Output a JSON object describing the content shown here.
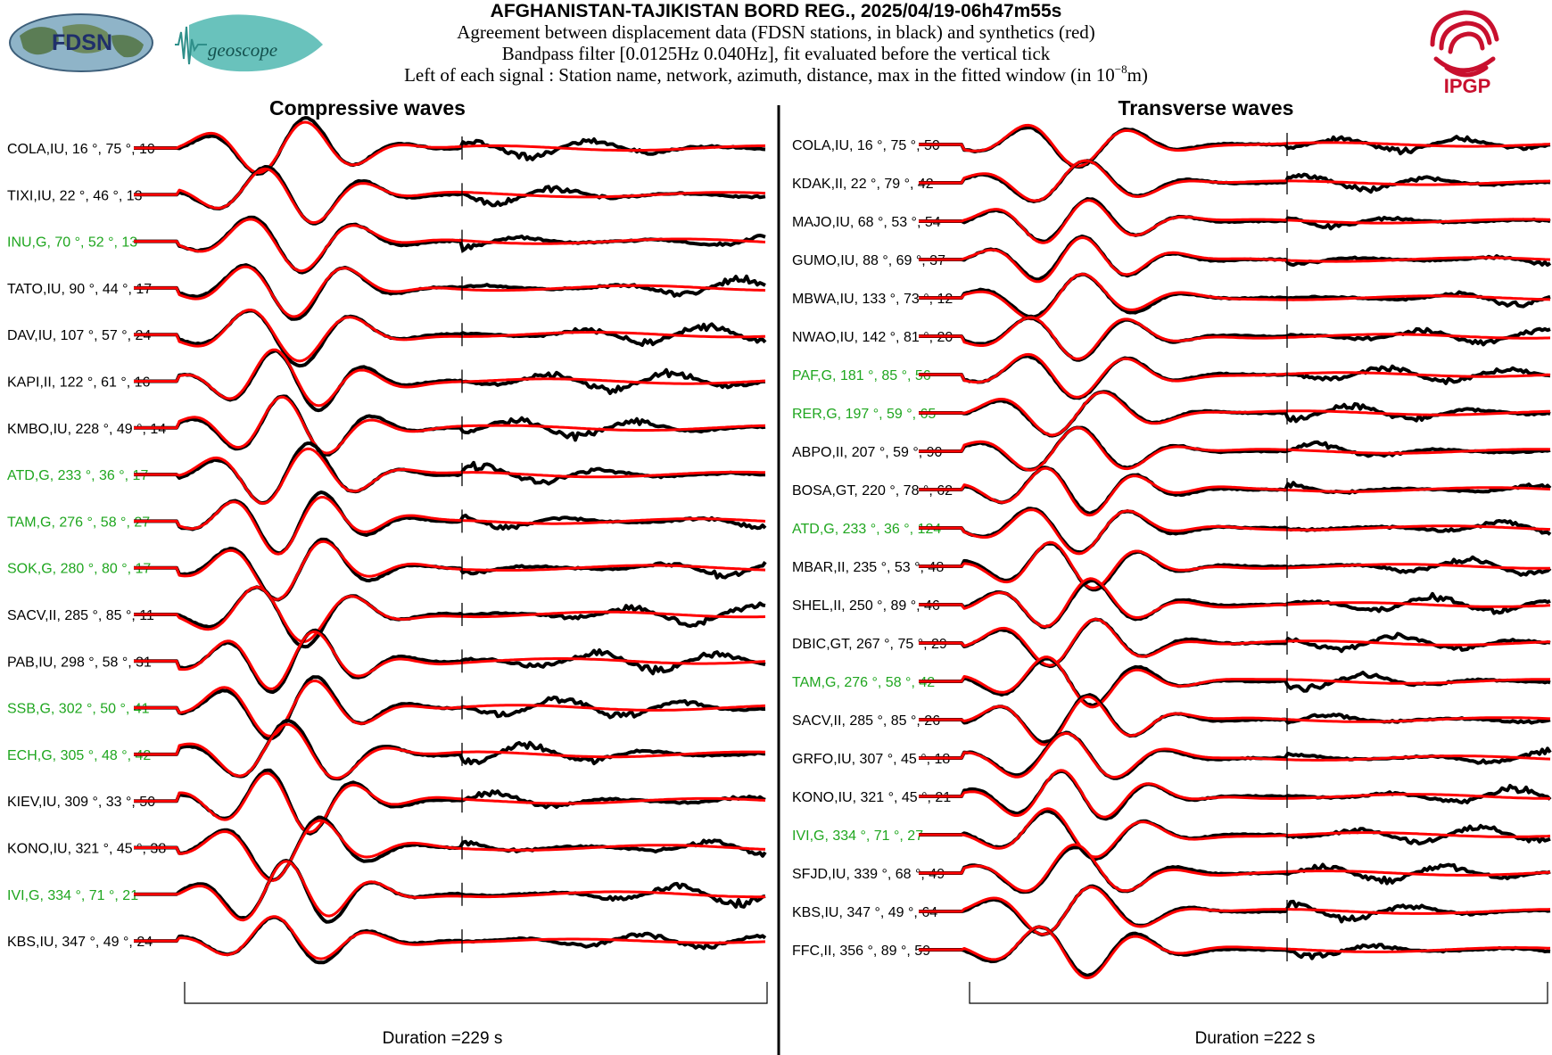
{
  "header": {
    "title": "AFGHANISTAN-TAJIKISTAN BORD REG., 2025/04/19-06h47m55s",
    "line1": "Agreement between displacement data (FDSN stations, in black) and synthetics (red)",
    "line2": "Bandpass filter [0.0125Hz 0.040Hz], fit evaluated before the vertical tick",
    "line3_pre": "Left of each signal : Station name, network, azimuth, distance, max in the fitted window (in 10",
    "line3_exp": "−8",
    "line3_post": "m)"
  },
  "logos": {
    "fdsn": "FDSN",
    "geoscope": "geoscope",
    "ipgp": "IPGP"
  },
  "colors": {
    "data": "#000000",
    "synthetic": "#ff0000",
    "geoscope_label": "#1fa61f",
    "normal_label": "#000000",
    "ipgp": "#c8102e",
    "logo_teal": "#4fb7b0"
  },
  "chart_data": [
    {
      "type": "line",
      "title": "Compressive waves",
      "duration_label": "Duration =229 s",
      "duration_s": 229,
      "series": [
        {
          "name": "data",
          "color": "#000000"
        },
        {
          "name": "synthetics",
          "color": "#ff0000"
        }
      ],
      "stations": [
        {
          "label": "COLA,IU, 16 °, 75 °, 10",
          "network": "IU",
          "azimuth": 16,
          "distance": 75,
          "max": 10,
          "geoscope": false
        },
        {
          "label": "TIXI,IU, 22 °, 46 °, 13",
          "network": "IU",
          "azimuth": 22,
          "distance": 46,
          "max": 13,
          "geoscope": false
        },
        {
          "label": "INU,G, 70 °, 52 °, 13",
          "network": "G",
          "azimuth": 70,
          "distance": 52,
          "max": 13,
          "geoscope": true
        },
        {
          "label": "TATO,IU, 90 °, 44 °, 17",
          "network": "IU",
          "azimuth": 90,
          "distance": 44,
          "max": 17,
          "geoscope": false
        },
        {
          "label": "DAV,IU, 107 °, 57 °, 24",
          "network": "IU",
          "azimuth": 107,
          "distance": 57,
          "max": 24,
          "geoscope": false
        },
        {
          "label": "KAPI,II, 122 °, 61 °, 16",
          "network": "II",
          "azimuth": 122,
          "distance": 61,
          "max": 16,
          "geoscope": false
        },
        {
          "label": "KMBO,IU, 228 °, 49 °, 14",
          "network": "IU",
          "azimuth": 228,
          "distance": 49,
          "max": 14,
          "geoscope": false
        },
        {
          "label": "ATD,G, 233 °, 36 °, 17",
          "network": "G",
          "azimuth": 233,
          "distance": 36,
          "max": 17,
          "geoscope": true
        },
        {
          "label": "TAM,G, 276 °, 58 °, 27",
          "network": "G",
          "azimuth": 276,
          "distance": 58,
          "max": 27,
          "geoscope": true
        },
        {
          "label": "SOK,G, 280 °, 80 °, 17",
          "network": "G",
          "azimuth": 280,
          "distance": 80,
          "max": 17,
          "geoscope": true
        },
        {
          "label": "SACV,II, 285 °, 85 °, 11",
          "network": "II",
          "azimuth": 285,
          "distance": 85,
          "max": 11,
          "geoscope": false
        },
        {
          "label": "PAB,IU, 298 °, 58 °, 31",
          "network": "IU",
          "azimuth": 298,
          "distance": 58,
          "max": 31,
          "geoscope": false
        },
        {
          "label": "SSB,G, 302 °, 50 °, 41",
          "network": "G",
          "azimuth": 302,
          "distance": 50,
          "max": 41,
          "geoscope": true
        },
        {
          "label": "ECH,G, 305 °, 48 °, 42",
          "network": "G",
          "azimuth": 305,
          "distance": 48,
          "max": 42,
          "geoscope": true
        },
        {
          "label": "KIEV,IU, 309 °, 33 °, 50",
          "network": "IU",
          "azimuth": 309,
          "distance": 33,
          "max": 50,
          "geoscope": false
        },
        {
          "label": "KONO,IU, 321 °, 45 °, 38",
          "network": "IU",
          "azimuth": 321,
          "distance": 45,
          "max": 38,
          "geoscope": false
        },
        {
          "label": "IVI,G, 334 °, 71 °, 21",
          "network": "G",
          "azimuth": 334,
          "distance": 71,
          "max": 21,
          "geoscope": true
        },
        {
          "label": "KBS,IU, 347 °, 49 °, 24",
          "network": "IU",
          "azimuth": 347,
          "distance": 49,
          "max": 24,
          "geoscope": false
        }
      ]
    },
    {
      "type": "line",
      "title": "Transverse waves",
      "duration_label": "Duration =222 s",
      "duration_s": 222,
      "series": [
        {
          "name": "data",
          "color": "#000000"
        },
        {
          "name": "synthetics",
          "color": "#ff0000"
        }
      ],
      "stations": [
        {
          "label": "COLA,IU, 16 °, 75 °, 50",
          "network": "IU",
          "azimuth": 16,
          "distance": 75,
          "max": 50,
          "geoscope": false
        },
        {
          "label": "KDAK,II, 22 °, 79 °, 42",
          "network": "II",
          "azimuth": 22,
          "distance": 79,
          "max": 42,
          "geoscope": false
        },
        {
          "label": "MAJO,IU, 68 °, 53 °, 54",
          "network": "IU",
          "azimuth": 68,
          "distance": 53,
          "max": 54,
          "geoscope": false
        },
        {
          "label": "GUMO,IU, 88 °, 69 °, 37",
          "network": "IU",
          "azimuth": 88,
          "distance": 69,
          "max": 37,
          "geoscope": false
        },
        {
          "label": "MBWA,IU, 133 °, 73 °, 12",
          "network": "IU",
          "azimuth": 133,
          "distance": 73,
          "max": 12,
          "geoscope": false
        },
        {
          "label": "NWAO,IU, 142 °, 81 °, 20",
          "network": "IU",
          "azimuth": 142,
          "distance": 81,
          "max": 20,
          "geoscope": false
        },
        {
          "label": "PAF,G, 181 °, 85 °, 56",
          "network": "G",
          "azimuth": 181,
          "distance": 85,
          "max": 56,
          "geoscope": true
        },
        {
          "label": "RER,G, 197 °, 59 °, 65",
          "network": "G",
          "azimuth": 197,
          "distance": 59,
          "max": 65,
          "geoscope": true
        },
        {
          "label": "ABPO,II, 207 °, 59 °, 90",
          "network": "II",
          "azimuth": 207,
          "distance": 59,
          "max": 90,
          "geoscope": false
        },
        {
          "label": "BOSA,GT, 220 °, 78 °, 62",
          "network": "GT",
          "azimuth": 220,
          "distance": 78,
          "max": 62,
          "geoscope": false
        },
        {
          "label": "ATD,G, 233 °, 36 °, 124",
          "network": "G",
          "azimuth": 233,
          "distance": 36,
          "max": 124,
          "geoscope": true
        },
        {
          "label": "MBAR,II, 235 °, 53 °, 48",
          "network": "II",
          "azimuth": 235,
          "distance": 53,
          "max": 48,
          "geoscope": false
        },
        {
          "label": "SHEL,II, 250 °, 89 °, 46",
          "network": "II",
          "azimuth": 250,
          "distance": 89,
          "max": 46,
          "geoscope": false
        },
        {
          "label": "DBIC,GT, 267 °, 75 °, 29",
          "network": "GT",
          "azimuth": 267,
          "distance": 75,
          "max": 29,
          "geoscope": false
        },
        {
          "label": "TAM,G, 276 °, 58 °, 42",
          "network": "G",
          "azimuth": 276,
          "distance": 58,
          "max": 42,
          "geoscope": true
        },
        {
          "label": "SACV,II, 285 °, 85 °, 26",
          "network": "II",
          "azimuth": 285,
          "distance": 85,
          "max": 26,
          "geoscope": false
        },
        {
          "label": "GRFO,IU, 307 °, 45 °, 18",
          "network": "IU",
          "azimuth": 307,
          "distance": 45,
          "max": 18,
          "geoscope": false
        },
        {
          "label": "KONO,IU, 321 °, 45 °, 21",
          "network": "IU",
          "azimuth": 321,
          "distance": 45,
          "max": 21,
          "geoscope": false
        },
        {
          "label": "IVI,G, 334 °, 71 °, 27",
          "network": "G",
          "azimuth": 334,
          "distance": 71,
          "max": 27,
          "geoscope": true
        },
        {
          "label": "SFJD,IU, 339 °, 68 °, 49",
          "network": "IU",
          "azimuth": 339,
          "distance": 68,
          "max": 49,
          "geoscope": false
        },
        {
          "label": "KBS,IU, 347 °, 49 °, 64",
          "network": "IU",
          "azimuth": 347,
          "distance": 49,
          "max": 64,
          "geoscope": false
        },
        {
          "label": "FFC,II, 356 °, 89 °, 59",
          "network": "II",
          "azimuth": 356,
          "distance": 89,
          "max": 59,
          "geoscope": false
        }
      ]
    }
  ]
}
